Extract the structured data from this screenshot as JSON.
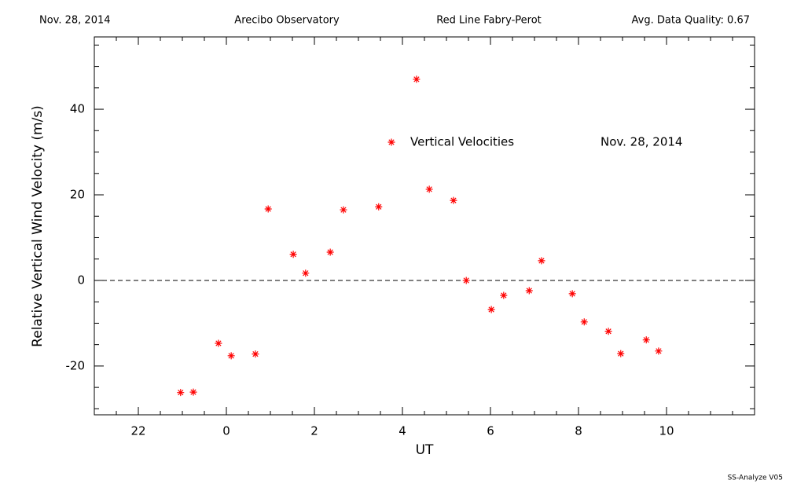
{
  "chart_data": {
    "type": "scatter",
    "header": [
      "Nov. 28, 2014",
      "Arecibo Observatory",
      "Red Line Fabry-Perot",
      "Avg. Data Quality: 0.67"
    ],
    "footer": "SS-Analyze V05",
    "xlabel": "UT",
    "ylabel": "Relative Vertical Wind Velocity (m/s)",
    "legend_date": "Nov. 28, 2014",
    "series": [
      {
        "name": "Vertical Velocities",
        "color": "#ff0000",
        "x": [
          -1.04,
          -0.75,
          -0.18,
          0.11,
          0.66,
          0.95,
          1.52,
          1.8,
          2.36,
          2.66,
          3.46,
          4.32,
          4.61,
          5.16,
          5.45,
          6.02,
          6.3,
          6.88,
          7.16,
          7.86,
          8.13,
          8.68,
          8.96,
          9.54,
          9.82
        ],
        "values": [
          -26.2,
          -26.1,
          -14.7,
          -17.6,
          -17.2,
          16.7,
          6.1,
          1.7,
          6.6,
          16.5,
          17.2,
          47.0,
          21.3,
          18.7,
          0.0,
          -6.8,
          -3.5,
          -2.4,
          4.6,
          -3.1,
          -9.7,
          -11.9,
          -17.1,
          -13.9,
          -16.5
        ]
      }
    ],
    "xlim": [
      -3,
      12
    ],
    "ylim": [
      -31.4,
      56.9
    ],
    "xticks": [
      {
        "value": -2,
        "label": "22"
      },
      0,
      2,
      4,
      6,
      8,
      10
    ],
    "yticks": [
      -20,
      0,
      20,
      40
    ],
    "xminorticks": [
      -2.5,
      -1.5,
      -1,
      -0.5,
      0.5,
      1,
      1.5,
      2.5,
      3,
      3.5,
      4.5,
      5,
      5.5,
      6.5,
      7,
      7.5,
      8.5,
      9,
      9.5,
      10.5,
      11,
      11.5
    ],
    "yminorticks": [
      -30,
      -25,
      -15,
      -10,
      -5,
      5,
      10,
      15,
      25,
      30,
      35,
      45,
      50,
      55
    ],
    "hline": 0
  }
}
